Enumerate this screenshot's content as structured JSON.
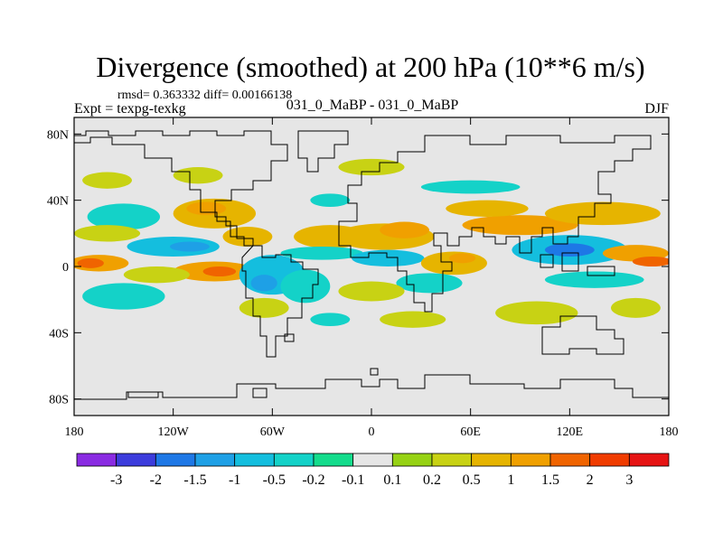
{
  "chart_data": {
    "type": "heatmap",
    "title": "Divergence (smoothed) at 200 hPa (10**6 m/s)",
    "stats": "rmsd= 0.363332 diff= 0.00166138",
    "left_label": "Expt = texpg-texkg",
    "center_label": "031_0_MaBP - 031_0_MaBP",
    "right_label": "DJF",
    "x_range": [
      -180,
      180
    ],
    "y_range": [
      -90,
      90
    ],
    "x_ticks": [
      {
        "value": -180,
        "label": "180"
      },
      {
        "value": -120,
        "label": "120W"
      },
      {
        "value": -60,
        "label": "60W"
      },
      {
        "value": 0,
        "label": "0"
      },
      {
        "value": 60,
        "label": "60E"
      },
      {
        "value": 120,
        "label": "120E"
      },
      {
        "value": 180,
        "label": "180"
      }
    ],
    "y_ticks": [
      {
        "value": 80,
        "label": "80N"
      },
      {
        "value": 40,
        "label": "40N"
      },
      {
        "value": 0,
        "label": "0"
      },
      {
        "value": -40,
        "label": "40S"
      },
      {
        "value": -80,
        "label": "80S"
      }
    ],
    "levels": [
      "-3",
      "-2",
      "-1.5",
      "-1",
      "-0.5",
      "-0.2",
      "-0.1",
      "0.1",
      "0.2",
      "0.5",
      "1",
      "1.5",
      "2",
      "3"
    ],
    "colors": [
      "#8a2be2",
      "#3c3cdc",
      "#1e78e6",
      "#1ea0e6",
      "#14bede",
      "#14d2c8",
      "#14dc8c",
      "#e6e6e6",
      "#96d214",
      "#c8d214",
      "#e6b400",
      "#f0a000",
      "#f06400",
      "#f03c00",
      "#e61414"
    ],
    "colors_note": "colors[0] = below first level, colors[i] = between levels[i-1] and levels[i], last = above last level",
    "field_regions": [
      {
        "lon": -165,
        "lat": 2,
        "rlon": 18,
        "rlat": 5,
        "value": 1.2
      },
      {
        "lon": -170,
        "lat": 2,
        "rlon": 8,
        "rlat": 3,
        "value": 1.7
      },
      {
        "lon": -95,
        "lat": -3,
        "rlon": 25,
        "rlat": 6,
        "value": 1.1
      },
      {
        "lon": -92,
        "lat": -3,
        "rlon": 10,
        "rlat": 3,
        "value": 1.7
      },
      {
        "lon": -130,
        "lat": -5,
        "rlon": 20,
        "rlat": 5,
        "value": 0.3
      },
      {
        "lon": -150,
        "lat": -18,
        "rlon": 25,
        "rlat": 8,
        "value": -0.5
      },
      {
        "lon": -120,
        "lat": 12,
        "rlon": 28,
        "rlat": 6,
        "value": -0.8
      },
      {
        "lon": -110,
        "lat": 12,
        "rlon": 12,
        "rlat": 3,
        "value": -1.2
      },
      {
        "lon": -150,
        "lat": 30,
        "rlon": 22,
        "rlat": 8,
        "value": -0.5
      },
      {
        "lon": -95,
        "lat": 32,
        "rlon": 25,
        "rlat": 9,
        "value": 0.8
      },
      {
        "lon": -100,
        "lat": 35,
        "rlon": 12,
        "rlat": 4,
        "value": 1.2
      },
      {
        "lon": -160,
        "lat": 52,
        "rlon": 15,
        "rlat": 5,
        "value": 0.3
      },
      {
        "lon": -105,
        "lat": 55,
        "rlon": 15,
        "rlat": 5,
        "value": 0.3
      },
      {
        "lon": -160,
        "lat": 20,
        "rlon": 20,
        "rlat": 5,
        "value": 0.3
      },
      {
        "lon": -60,
        "lat": -5,
        "rlon": 20,
        "rlat": 12,
        "value": -0.6
      },
      {
        "lon": -65,
        "lat": -10,
        "rlon": 8,
        "rlat": 5,
        "value": -1.2
      },
      {
        "lon": -40,
        "lat": -12,
        "rlon": 15,
        "rlat": 10,
        "value": -0.5
      },
      {
        "lon": -65,
        "lat": -25,
        "rlon": 15,
        "rlat": 6,
        "value": 0.3
      },
      {
        "lon": -75,
        "lat": 18,
        "rlon": 15,
        "rlat": 6,
        "value": 0.6
      },
      {
        "lon": -25,
        "lat": 18,
        "rlon": 22,
        "rlat": 7,
        "value": 0.6
      },
      {
        "lon": -30,
        "lat": 8,
        "rlon": 25,
        "rlat": 4,
        "value": -0.4
      },
      {
        "lon": 8,
        "lat": 18,
        "rlon": 30,
        "rlat": 8,
        "value": 0.6
      },
      {
        "lon": 20,
        "lat": 22,
        "rlon": 15,
        "rlat": 5,
        "value": 1.1
      },
      {
        "lon": 10,
        "lat": 5,
        "rlon": 22,
        "rlat": 5,
        "value": -0.6
      },
      {
        "lon": 50,
        "lat": 2,
        "rlon": 20,
        "rlat": 7,
        "value": 0.8
      },
      {
        "lon": 55,
        "lat": 5,
        "rlon": 8,
        "rlat": 3,
        "value": 1.2
      },
      {
        "lon": 35,
        "lat": -10,
        "rlon": 20,
        "rlat": 6,
        "value": -0.5
      },
      {
        "lon": 0,
        "lat": -15,
        "rlon": 20,
        "rlat": 6,
        "value": 0.3
      },
      {
        "lon": 120,
        "lat": 10,
        "rlon": 35,
        "rlat": 9,
        "value": -1.0
      },
      {
        "lon": 120,
        "lat": 10,
        "rlon": 15,
        "rlat": 4,
        "value": -1.6
      },
      {
        "lon": 160,
        "lat": 8,
        "rlon": 20,
        "rlat": 5,
        "value": 1.0
      },
      {
        "lon": 170,
        "lat": 3,
        "rlon": 12,
        "rlat": 3,
        "value": 1.6
      },
      {
        "lon": 135,
        "lat": -8,
        "rlon": 30,
        "rlat": 5,
        "value": -0.5
      },
      {
        "lon": 90,
        "lat": 25,
        "rlon": 35,
        "rlat": 6,
        "value": 1.0
      },
      {
        "lon": 70,
        "lat": 35,
        "rlon": 25,
        "rlat": 5,
        "value": 0.8
      },
      {
        "lon": 140,
        "lat": 32,
        "rlon": 35,
        "rlat": 7,
        "value": 0.6
      },
      {
        "lon": 100,
        "lat": -28,
        "rlon": 25,
        "rlat": 7,
        "value": 0.3
      },
      {
        "lon": 160,
        "lat": -25,
        "rlon": 15,
        "rlat": 6,
        "value": 0.3
      },
      {
        "lon": 60,
        "lat": 48,
        "rlon": 30,
        "rlat": 4,
        "value": -0.3
      },
      {
        "lon": 0,
        "lat": 60,
        "rlon": 20,
        "rlat": 5,
        "value": 0.3
      },
      {
        "lon": -25,
        "lat": 40,
        "rlon": 12,
        "rlat": 4,
        "value": -0.3
      },
      {
        "lon": 25,
        "lat": -32,
        "rlon": 20,
        "rlat": 5,
        "value": 0.3
      },
      {
        "lon": -25,
        "lat": -32,
        "rlon": 12,
        "rlat": 4,
        "value": -0.3
      }
    ]
  }
}
